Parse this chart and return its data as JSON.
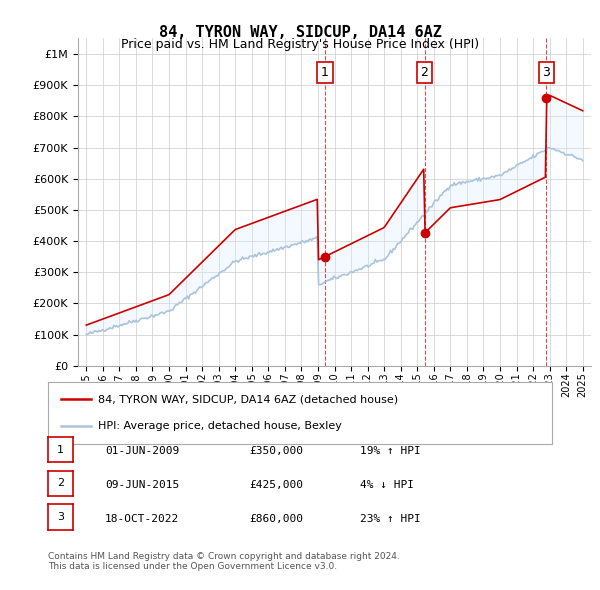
{
  "title": "84, TYRON WAY, SIDCUP, DA14 6AZ",
  "subtitle": "Price paid vs. HM Land Registry's House Price Index (HPI)",
  "background_color": "#ffffff",
  "plot_bg_color": "#ffffff",
  "grid_color": "#cccccc",
  "hpi_line_color": "#aac4dd",
  "price_line_color": "#cc0000",
  "shade_color": "#ddeeff",
  "transactions": [
    {
      "date": 2009.42,
      "price": 350000,
      "label": "1"
    },
    {
      "date": 2015.44,
      "price": 425000,
      "label": "2"
    },
    {
      "date": 2022.8,
      "price": 860000,
      "label": "3"
    }
  ],
  "legend_entries": [
    "84, TYRON WAY, SIDCUP, DA14 6AZ (detached house)",
    "HPI: Average price, detached house, Bexley"
  ],
  "table_rows": [
    {
      "num": "1",
      "date": "01-JUN-2009",
      "price": "£350,000",
      "hpi": "19% ↑ HPI"
    },
    {
      "num": "2",
      "date": "09-JUN-2015",
      "price": "£425,000",
      "hpi": "4% ↓ HPI"
    },
    {
      "num": "3",
      "date": "18-OCT-2022",
      "price": "£860,000",
      "hpi": "23% ↑ HPI"
    }
  ],
  "footnote": "Contains HM Land Registry data © Crown copyright and database right 2024.\nThis data is licensed under the Open Government Licence v3.0.",
  "ylim": [
    0,
    1050000
  ],
  "xlim": [
    1994.5,
    2025.5
  ],
  "yticks": [
    0,
    100000,
    200000,
    300000,
    400000,
    500000,
    600000,
    700000,
    800000,
    900000,
    1000000
  ]
}
